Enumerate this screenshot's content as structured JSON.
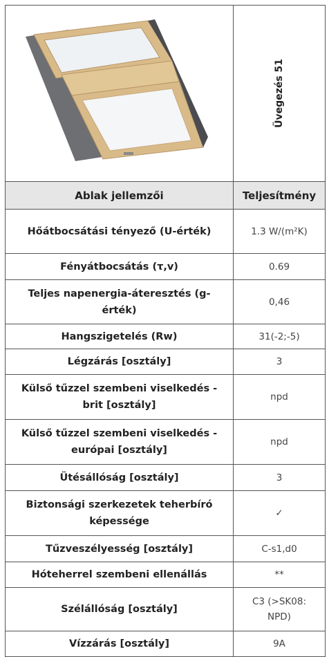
{
  "header": {
    "glazing": "Üvegezés 51"
  },
  "table": {
    "columns": [
      "Ablak jellemzői",
      "Teljesítmény"
    ],
    "rows": [
      [
        "Hőátbocsátási tényező (U-érték)",
        "1.3 W/(m²K)"
      ],
      [
        "Fényátbocsátás (τ,v)",
        "0.69"
      ],
      [
        "Teljes napenergia-áteresztés (g-érték)",
        "0,46"
      ],
      [
        "Hangszigetelés (Rw)",
        "31(-2;-5)"
      ],
      [
        "Légzárás [osztály]",
        "3"
      ],
      [
        "Külső tűzzel szembeni viselkedés - brit [osztály]",
        "npd"
      ],
      [
        "Külső tűzzel szembeni viselkedés - európai [osztály]",
        "npd"
      ],
      [
        "Ütésállóság [osztály]",
        "3"
      ],
      [
        "Biztonsági szerkezetek teherbíró képessége",
        "✓"
      ],
      [
        "Tűzveszélyesség [osztály]",
        "C-s1,d0"
      ],
      [
        "Hóteherrel szembeni ellenállás",
        "**"
      ],
      [
        "Szélállóság [osztály]",
        "C3 (>SK08: NPD)"
      ],
      [
        "Vízzárás [osztály]",
        "9A"
      ]
    ]
  }
}
